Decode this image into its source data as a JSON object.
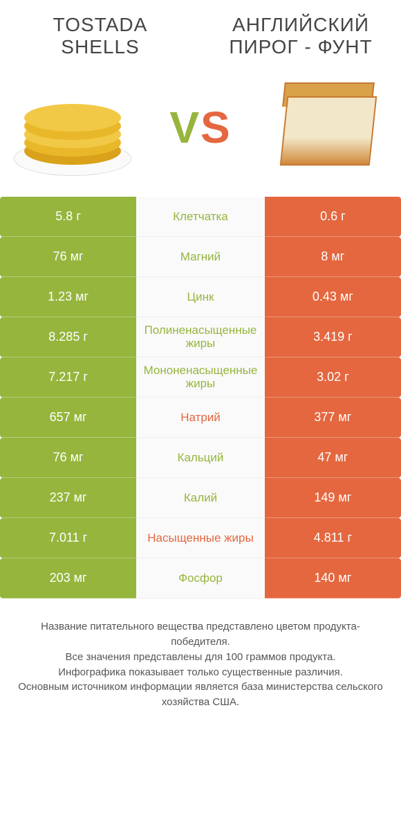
{
  "colors": {
    "green": "#95b53d",
    "orange": "#e4673f",
    "vs_green": "#95b53d",
    "vs_orange": "#e4673f",
    "shell": [
      "#f2c946",
      "#e9b82a",
      "#d9a21a"
    ]
  },
  "header": {
    "left_title": "TOSTADA SHELLS",
    "right_title": "АНГЛИЙСКИЙ ПИРОГ - ФУНТ",
    "vs": "VS"
  },
  "rows": [
    {
      "left": "5.8 г",
      "label": "Клетчатка",
      "right": "0.6 г",
      "winner": "left"
    },
    {
      "left": "76 мг",
      "label": "Магний",
      "right": "8 мг",
      "winner": "left"
    },
    {
      "left": "1.23 мг",
      "label": "Цинк",
      "right": "0.43 мг",
      "winner": "left"
    },
    {
      "left": "8.285 г",
      "label": "Полиненасыщенные жиры",
      "right": "3.419 г",
      "winner": "left"
    },
    {
      "left": "7.217 г",
      "label": "Мононенасыщенные жиры",
      "right": "3.02 г",
      "winner": "left"
    },
    {
      "left": "657 мг",
      "label": "Натрий",
      "right": "377 мг",
      "winner": "right"
    },
    {
      "left": "76 мг",
      "label": "Кальций",
      "right": "47 мг",
      "winner": "left"
    },
    {
      "left": "237 мг",
      "label": "Калий",
      "right": "149 мг",
      "winner": "left"
    },
    {
      "left": "7.011 г",
      "label": "Насыщенные жиры",
      "right": "4.811 г",
      "winner": "right"
    },
    {
      "left": "203 мг",
      "label": "Фосфор",
      "right": "140 мг",
      "winner": "left"
    }
  ],
  "footer": [
    "Название питательного вещества представлено цветом продукта-победителя.",
    "Все значения представлены для 100 граммов продукта.",
    "Инфографика показывает только существенные различия.",
    "Основным источником информации является база министерства сельского хозяйства США."
  ]
}
